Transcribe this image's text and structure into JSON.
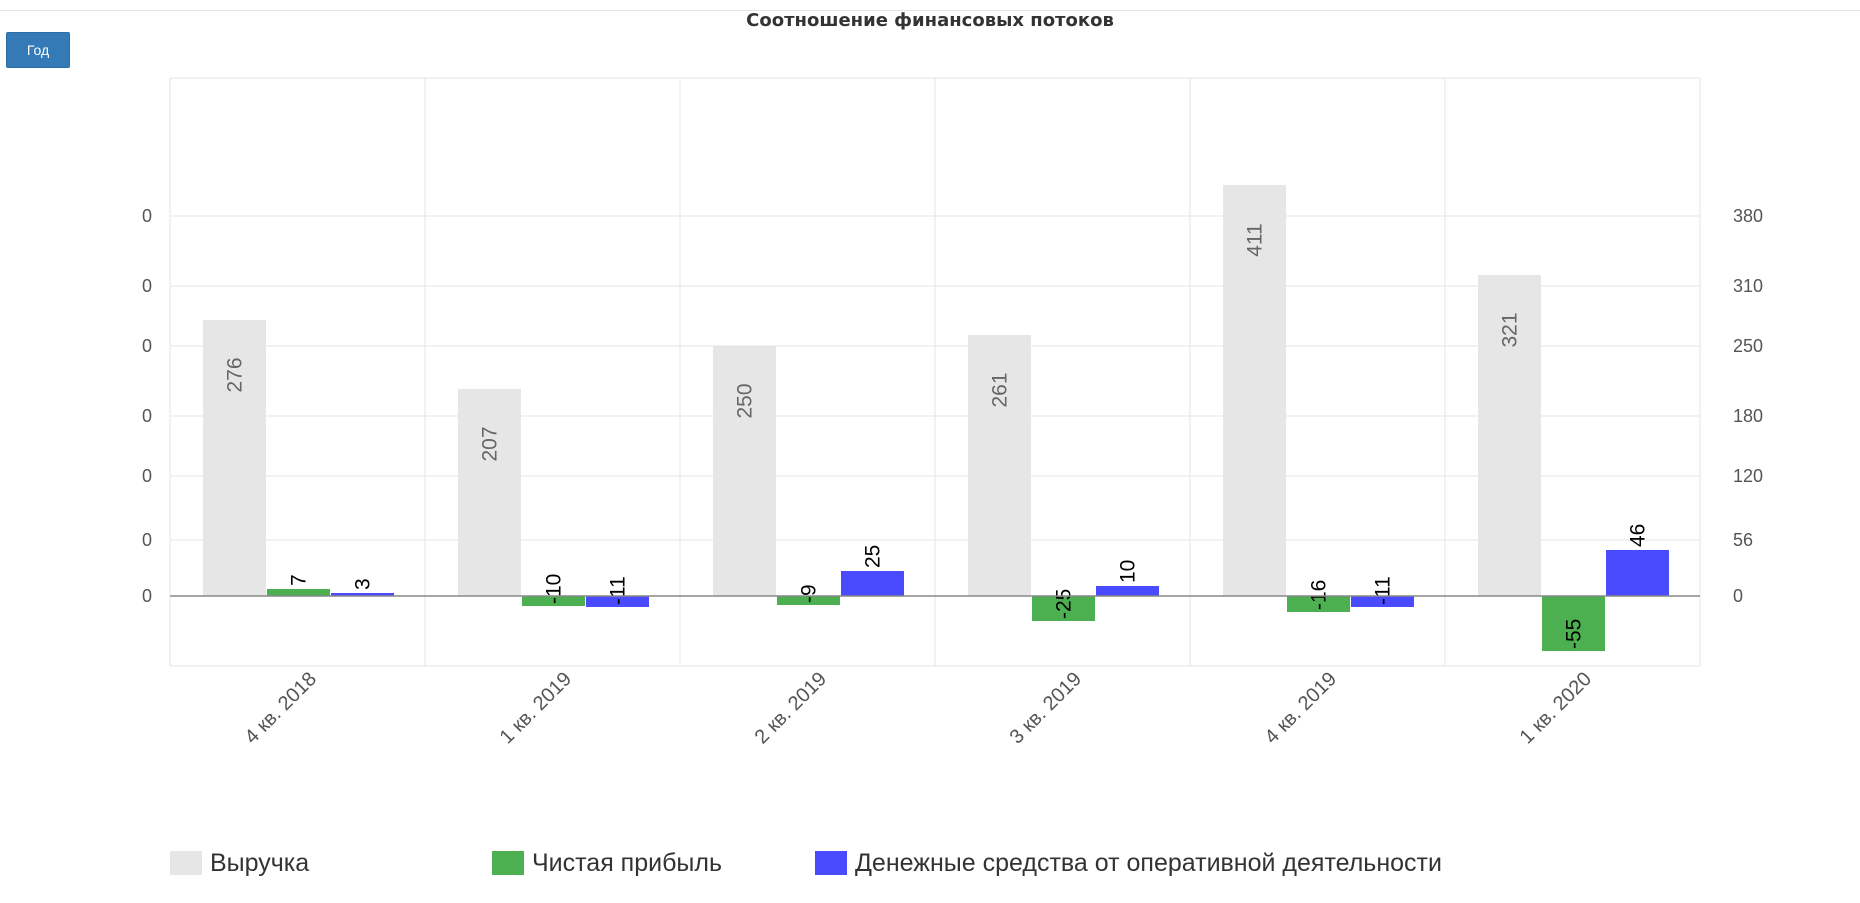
{
  "page": {
    "period_button": "Год"
  },
  "chart_data": {
    "type": "bar",
    "title": "Соотношение финансовых потоков",
    "categories": [
      "4 кв. 2018",
      "1 кв. 2019",
      "2 кв. 2019",
      "3 кв. 2019",
      "4 кв. 2019",
      "1 кв. 2020"
    ],
    "series": [
      {
        "name": "Выручка",
        "values": [
          276,
          207,
          250,
          261,
          411,
          321
        ],
        "color": "#e6e6e6",
        "axis": "left"
      },
      {
        "name": "Чистая прибыль",
        "values": [
          7,
          -10,
          -9,
          -25,
          -16,
          -55
        ],
        "color": "#4caf50",
        "axis": "right"
      },
      {
        "name": "Денежные средства от оперативной деятельности",
        "values": [
          3,
          -11,
          25,
          10,
          -11,
          46
        ],
        "color": "#4a4aff",
        "axis": "right"
      }
    ],
    "left_axis": {
      "ticks": [
        "0",
        "0",
        "0",
        "0",
        "0",
        "0",
        "0"
      ],
      "range": [
        -55,
        411
      ]
    },
    "right_axis": {
      "ticks": [
        0,
        56,
        120,
        180,
        250,
        310,
        380
      ],
      "range": [
        -55,
        411
      ]
    },
    "grid": true,
    "legend_position": "bottom-left",
    "label_color_revenue": "#666666",
    "label_color_other": "#000000",
    "zero_line_color": "#888888",
    "grid_color": "#e6e6e6"
  }
}
